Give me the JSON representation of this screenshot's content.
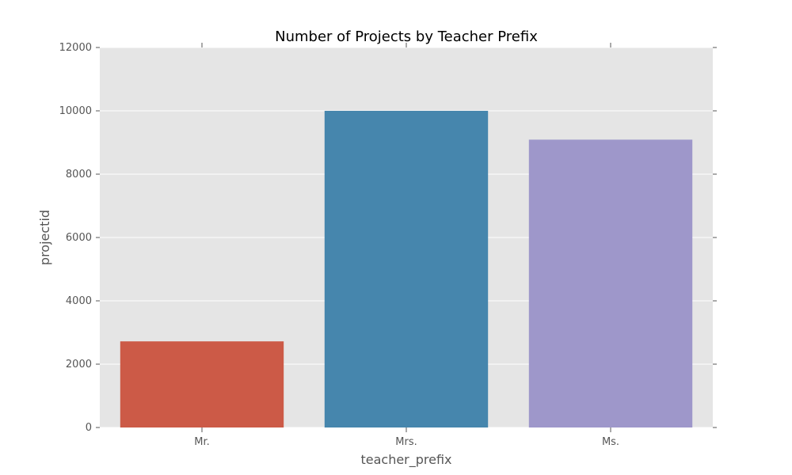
{
  "chart_data": {
    "type": "bar",
    "title": "Number of Projects by Teacher Prefix",
    "xlabel": "teacher_prefix",
    "ylabel": "projectid",
    "categories": [
      "Mr.",
      "Mrs.",
      "Ms."
    ],
    "values": [
      2720,
      10000,
      9090
    ],
    "ylim": [
      0,
      12000
    ],
    "yticks": [
      0,
      2000,
      4000,
      6000,
      8000,
      10000,
      12000
    ],
    "grid": true,
    "legend": "none",
    "colors": {
      "background": "#e5e5e5",
      "grid": "#ffffff",
      "bars": [
        "#cc5a47",
        "#4686ad",
        "#9e97ca"
      ],
      "text": "#555555"
    }
  }
}
